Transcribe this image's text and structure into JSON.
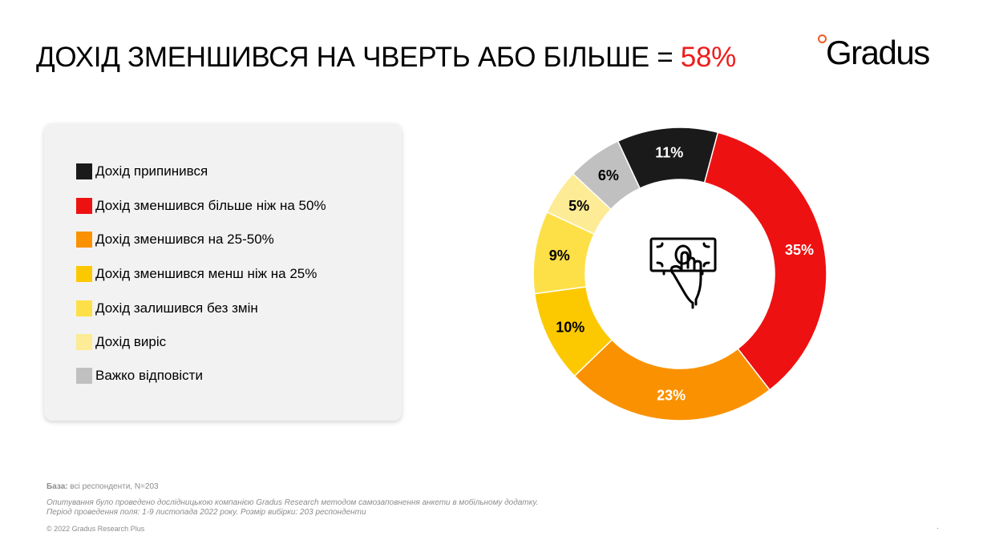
{
  "title": {
    "text": "ДОХІД ЗМЕНШИВСЯ НА ЧВЕРТЬ АБО БІЛЬШЕ = ",
    "highlight": "58%"
  },
  "logo": {
    "text": "Gradus"
  },
  "colors": {
    "accent_red": "#ee1c1c",
    "logo_dot": "#f05a28"
  },
  "center_icon": "hand-holding-money-icon",
  "chart_data": {
    "type": "pie",
    "donut": true,
    "title": "",
    "categories": [
      "Дохід припинився",
      "Дохід зменшився більше ніж на 50%",
      "Дохід зменшився на 25-50%",
      "Дохід зменшився менш ніж на 25%",
      "Дохід залишився без змін",
      "Дохід виріс",
      "Важко відповісти"
    ],
    "values": [
      11,
      35,
      23,
      10,
      9,
      5,
      6
    ],
    "value_labels": [
      "11%",
      "35%",
      "23%",
      "10%",
      "9%",
      "5%",
      "6%"
    ],
    "colors": [
      "#1a1a1a",
      "#ee1111",
      "#fa9100",
      "#fcc900",
      "#fde047",
      "#fdeb95",
      "#c0c0c0"
    ],
    "label_colors": [
      "#ffffff",
      "#ffffff",
      "#ffffff",
      "#000000",
      "#000000",
      "#000000",
      "#000000"
    ],
    "draw_order": [
      1,
      2,
      3,
      4,
      5,
      6,
      0
    ],
    "legend_position": "left"
  },
  "footer": {
    "base_label": "База:",
    "base_text": " всі респонденти, N=203",
    "note_line1": "Опитування було проведено дослідницькою компанією Gradus Research методом самозаповнення анкети в мобільному додатку.",
    "note_line2": "Період проведення поля: 1-9 листопада 2022 року. Розмір вибірки: 203 респонденти",
    "copyright": "© 2022 Gradus Research Plus",
    "dot": "."
  }
}
